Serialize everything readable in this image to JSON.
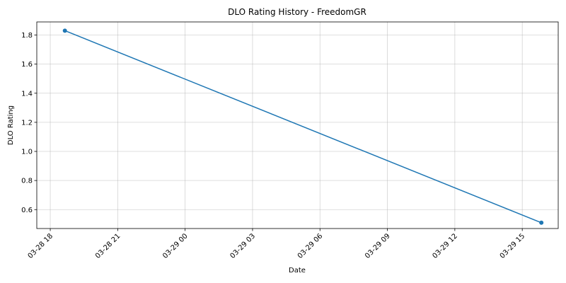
{
  "chart_data": {
    "type": "line",
    "title": "DLO Rating History - FreedomGR",
    "xlabel": "Date",
    "ylabel": "DLO Rating",
    "x_ticks": [
      {
        "t": 0,
        "label": "03-28 18"
      },
      {
        "t": 3,
        "label": "03-28 21"
      },
      {
        "t": 6,
        "label": "03-29 00"
      },
      {
        "t": 9,
        "label": "03-29 03"
      },
      {
        "t": 12,
        "label": "03-29 06"
      },
      {
        "t": 15,
        "label": "03-29 09"
      },
      {
        "t": 18,
        "label": "03-29 12"
      },
      {
        "t": 21,
        "label": "03-29 15"
      }
    ],
    "y_ticks": [
      0.6,
      0.8,
      1.0,
      1.2,
      1.4,
      1.6,
      1.8
    ],
    "xlim": [
      -0.6,
      22.6
    ],
    "ylim": [
      0.47,
      1.89
    ],
    "grid": true,
    "series": [
      {
        "color": "#1f77b4",
        "points": [
          {
            "t": 0.65,
            "y": 1.83
          },
          {
            "t": 21.85,
            "y": 0.51
          }
        ]
      }
    ]
  }
}
